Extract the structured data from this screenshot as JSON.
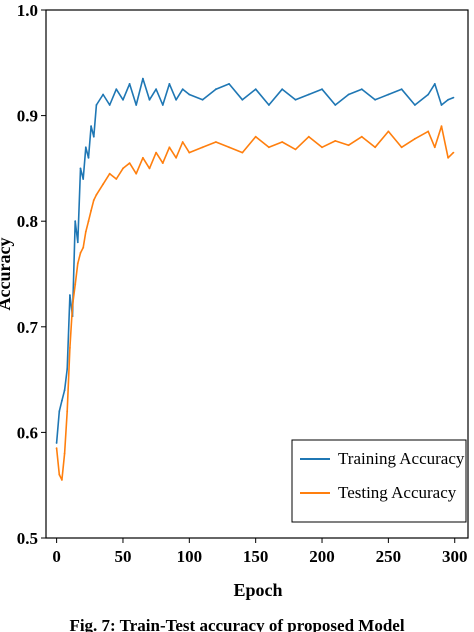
{
  "chart_data": {
    "type": "line",
    "title": "",
    "xlabel": "Epoch",
    "ylabel": "Accuracy",
    "xlim": [
      -8,
      310
    ],
    "ylim": [
      0.5,
      1.0
    ],
    "xticks": [
      0,
      50,
      100,
      150,
      200,
      250,
      300
    ],
    "xtick_labels": [
      "0",
      "50",
      "100",
      "150",
      "200",
      "250",
      "300"
    ],
    "yticks": [
      0.5,
      0.6,
      0.7,
      0.8,
      0.9,
      1.0
    ],
    "ytick_labels": [
      "0.5",
      "0.6",
      "0.7",
      "0.8",
      "0.9",
      "1.0"
    ],
    "grid": false,
    "legend_position": "lower-right",
    "series": [
      {
        "name": "Training Accuracy",
        "color": "#1f77b4",
        "x": [
          0,
          2,
          4,
          6,
          8,
          10,
          12,
          14,
          16,
          18,
          20,
          22,
          24,
          26,
          28,
          30,
          35,
          40,
          45,
          50,
          55,
          60,
          65,
          70,
          75,
          80,
          85,
          90,
          95,
          100,
          110,
          120,
          130,
          140,
          150,
          160,
          170,
          180,
          190,
          200,
          210,
          220,
          230,
          240,
          250,
          260,
          270,
          280,
          285,
          290,
          295,
          299
        ],
        "values": [
          0.59,
          0.62,
          0.63,
          0.64,
          0.66,
          0.73,
          0.71,
          0.8,
          0.78,
          0.85,
          0.84,
          0.87,
          0.86,
          0.89,
          0.88,
          0.91,
          0.92,
          0.91,
          0.925,
          0.915,
          0.93,
          0.91,
          0.935,
          0.915,
          0.925,
          0.91,
          0.93,
          0.915,
          0.925,
          0.92,
          0.915,
          0.925,
          0.93,
          0.915,
          0.925,
          0.91,
          0.925,
          0.915,
          0.92,
          0.925,
          0.91,
          0.92,
          0.925,
          0.915,
          0.92,
          0.925,
          0.91,
          0.92,
          0.93,
          0.91,
          0.915,
          0.917
        ]
      },
      {
        "name": "Testing Accuracy",
        "color": "#ff7f0e",
        "x": [
          0,
          2,
          4,
          6,
          8,
          10,
          12,
          14,
          16,
          18,
          20,
          22,
          24,
          26,
          28,
          30,
          35,
          40,
          45,
          50,
          55,
          60,
          65,
          70,
          75,
          80,
          85,
          90,
          95,
          100,
          110,
          120,
          130,
          140,
          150,
          160,
          170,
          180,
          190,
          200,
          210,
          220,
          230,
          240,
          250,
          260,
          270,
          280,
          285,
          290,
          295,
          299
        ],
        "values": [
          0.585,
          0.56,
          0.555,
          0.58,
          0.62,
          0.68,
          0.72,
          0.74,
          0.76,
          0.77,
          0.775,
          0.79,
          0.8,
          0.81,
          0.82,
          0.825,
          0.835,
          0.845,
          0.84,
          0.85,
          0.855,
          0.845,
          0.86,
          0.85,
          0.865,
          0.855,
          0.87,
          0.86,
          0.875,
          0.865,
          0.87,
          0.875,
          0.87,
          0.865,
          0.88,
          0.87,
          0.875,
          0.868,
          0.88,
          0.87,
          0.876,
          0.872,
          0.88,
          0.87,
          0.885,
          0.87,
          0.878,
          0.885,
          0.87,
          0.89,
          0.86,
          0.865
        ]
      }
    ]
  },
  "caption": "Fig. 7: Train-Test accuracy of proposed Model"
}
